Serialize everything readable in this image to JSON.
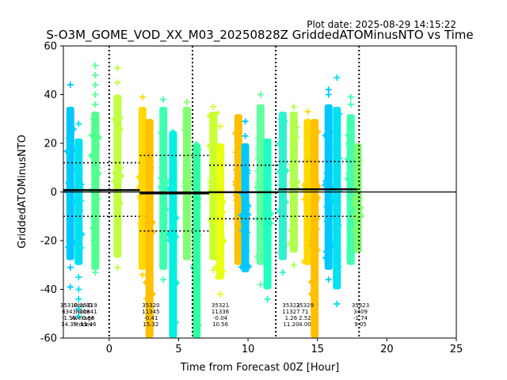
{
  "chart_data": {
    "type": "scatter",
    "title": "S-O3M_GOME_VOD_XX_M03_20250828Z GriddedATOMinusNTO vs Time",
    "plot_date": "Plot date: 2025-08-29 14:15:22",
    "xlabel": "Time from Forecast 00Z [Hour]",
    "ylabel": "GriddedATOMinusNTO",
    "xlim": [
      -3.3,
      25
    ],
    "ylim": [
      -60,
      60
    ],
    "xticks": [
      0,
      5,
      10,
      15,
      20,
      25
    ],
    "yticks": [
      -60,
      -40,
      -20,
      0,
      20,
      40,
      60
    ],
    "grid": false,
    "vlines": [
      0,
      6,
      12,
      18
    ],
    "marker": "+",
    "clusters": [
      {
        "x": -2.8,
        "ymin": -28,
        "ymax": 35,
        "color": "#00c8ff",
        "out_hi": [
          44
        ],
        "out_lo": [
          -31,
          -39
        ]
      },
      {
        "x": -2.2,
        "ymin": -30,
        "ymax": 22,
        "color": "#00e0f0",
        "out_hi": [
          28
        ],
        "out_lo": [
          -35,
          -40,
          -44,
          -48,
          -51
        ]
      },
      {
        "x": -1.0,
        "ymin": -32,
        "ymax": 33,
        "color": "#50ff90",
        "out_hi": [
          36,
          40,
          44,
          48,
          52
        ],
        "out_lo": [
          -33
        ]
      },
      {
        "x": 0.6,
        "ymin": -27,
        "ymax": 40,
        "color": "#c0ff40",
        "out_hi": [
          45,
          51
        ],
        "out_lo": [
          -31
        ]
      },
      {
        "x": 2.4,
        "ymin": -32,
        "ymax": 35,
        "color": "#ffd800",
        "out_hi": [
          39
        ],
        "out_lo": [
          -34
        ]
      },
      {
        "x": 2.9,
        "ymin": -60,
        "ymax": 30,
        "color": "#ffc000",
        "out_hi": [],
        "out_lo": []
      },
      {
        "x": 3.9,
        "ymin": -32,
        "ymax": 35,
        "color": "#40ffb0",
        "out_hi": [
          38
        ],
        "out_lo": [
          -36
        ]
      },
      {
        "x": 4.6,
        "ymin": -60,
        "ymax": 25,
        "color": "#00f0e0",
        "out_hi": [],
        "out_lo": []
      },
      {
        "x": 5.6,
        "ymin": -28,
        "ymax": 35,
        "color": "#80ff70",
        "out_hi": [
          37
        ],
        "out_lo": []
      },
      {
        "x": 6.3,
        "ymin": -60,
        "ymax": 20,
        "color": "#30ffa0",
        "out_hi": [],
        "out_lo": []
      },
      {
        "x": 7.5,
        "ymin": -28,
        "ymax": 33,
        "color": "#c8ff30",
        "out_hi": [
          35
        ],
        "out_lo": [
          -32
        ]
      },
      {
        "x": 8.0,
        "ymin": -36,
        "ymax": 20,
        "color": "#e8ff10",
        "out_hi": [
          27
        ],
        "out_lo": [
          -42
        ]
      },
      {
        "x": 9.3,
        "ymin": -30,
        "ymax": 32,
        "color": "#ffc000",
        "out_hi": [],
        "out_lo": []
      },
      {
        "x": 9.8,
        "ymin": -33,
        "ymax": 20,
        "color": "#00c8ff",
        "out_hi": [
          23,
          29
        ],
        "out_lo": []
      },
      {
        "x": 10.9,
        "ymin": -30,
        "ymax": 36,
        "color": "#60ffa0",
        "out_hi": [
          40
        ],
        "out_lo": [
          -38
        ]
      },
      {
        "x": 11.4,
        "ymin": -40,
        "ymax": 22,
        "color": "#20ffc0",
        "out_hi": [],
        "out_lo": [
          -44
        ]
      },
      {
        "x": 12.5,
        "ymin": -28,
        "ymax": 33,
        "color": "#30f0d0",
        "out_hi": [],
        "out_lo": [
          -33
        ]
      },
      {
        "x": 13.3,
        "ymin": -25,
        "ymax": 33,
        "color": "#b0ff50",
        "out_hi": [
          35
        ],
        "out_lo": [
          -30
        ]
      },
      {
        "x": 14.3,
        "ymin": -30,
        "ymax": 30,
        "color": "#ffd800",
        "out_hi": [
          33
        ],
        "out_lo": []
      },
      {
        "x": 14.8,
        "ymin": -60,
        "ymax": 30,
        "color": "#ffc000",
        "out_hi": [],
        "out_lo": []
      },
      {
        "x": 15.8,
        "ymin": -32,
        "ymax": 36,
        "color": "#00c8ff",
        "out_hi": [
          40,
          42
        ],
        "out_lo": [
          -36
        ]
      },
      {
        "x": 16.4,
        "ymin": -40,
        "ymax": 35,
        "color": "#00e0f0",
        "out_hi": [
          47
        ],
        "out_lo": [
          -46
        ]
      },
      {
        "x": 17.4,
        "ymin": -30,
        "ymax": 32,
        "color": "#40ffb0",
        "out_hi": [
          36,
          39
        ],
        "out_lo": []
      },
      {
        "x": 17.9,
        "ymin": -25,
        "ymax": 20,
        "color": "#80ff70",
        "out_hi": [],
        "out_lo": []
      }
    ],
    "mean_segments": [
      {
        "x0": -3.3,
        "x1": 2.2,
        "y": 0.8
      },
      {
        "x0": 2.2,
        "x1": 7.2,
        "y": -0.6
      },
      {
        "x0": 7.2,
        "x1": 12.2,
        "y": -0.1
      },
      {
        "x0": 12.2,
        "x1": 17.9,
        "y": 1.1
      }
    ],
    "std_segments": [
      {
        "x0": -3.3,
        "x1": 2.2,
        "yhi": 12,
        "ylo": -10
      },
      {
        "x0": 2.2,
        "x1": 7.2,
        "yhi": 15,
        "ylo": -16
      },
      {
        "x0": 7.2,
        "x1": 12.2,
        "yhi": 11,
        "ylo": -11
      },
      {
        "x0": 12.2,
        "x1": 17.9,
        "yhi": 12.5,
        "ylo": -10
      }
    ],
    "annotations": [
      {
        "x": -2.9,
        "lines": [
          "35318",
          "6343",
          "-1.59",
          "14.39"
        ]
      },
      {
        "x": -1.9,
        "lines": [
          "Obs-ID",
          "Nobs",
          "Average",
          "Stddev"
        ]
      },
      {
        "x": -1.5,
        "lines": [
          "35319",
          "10841",
          "0.86",
          "11.46"
        ]
      },
      {
        "x": 3.0,
        "lines": [
          "35320",
          "11345",
          "-0.41",
          "15.32"
        ]
      },
      {
        "x": 8.0,
        "lines": [
          "35321",
          "11336",
          "-0.04",
          "10.56"
        ]
      },
      {
        "x": 13.1,
        "lines": [
          "35322",
          "11327",
          "1.26",
          "11.20"
        ]
      },
      {
        "x": 14.1,
        "lines": [
          "35329",
          "71",
          "2.52",
          "4.00"
        ]
      },
      {
        "x": 18.1,
        "lines": [
          "35323",
          "3409",
          "-1.74",
          "9.05"
        ]
      }
    ]
  }
}
